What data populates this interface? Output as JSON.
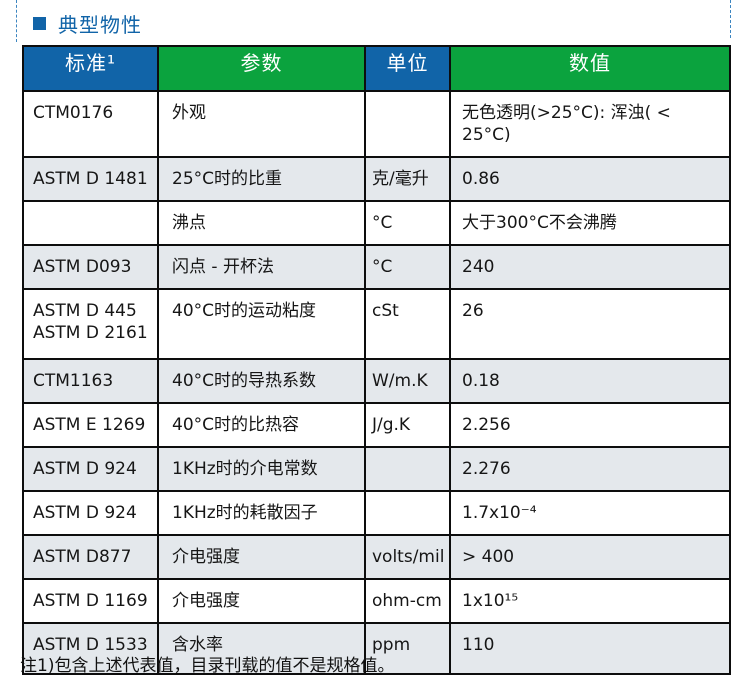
{
  "page": {
    "title": "典型物性",
    "footnote": "注1)包含上述代表值，目录刊载的值不是规格值。"
  },
  "colors": {
    "header_blue": "#1164a8",
    "header_green": "#0ba33e",
    "row_shaded": "#e4e8ec",
    "title_blue": "#1164a8",
    "border": "#0d0d0d"
  },
  "table": {
    "headers": [
      {
        "label": "标准¹"
      },
      {
        "label": "参数"
      },
      {
        "label": "单位"
      },
      {
        "label": "数值"
      }
    ],
    "rows": [
      {
        "standard": "CTM0176",
        "parameter": "外观",
        "unit": "",
        "value": "无色透明(>25°C): 浑浊( < 25°C)"
      },
      {
        "standard": "ASTM D 1481",
        "parameter": "25°C时的比重",
        "unit": "克/毫升",
        "value": "0.86"
      },
      {
        "standard": "",
        "parameter": "沸点",
        "unit": "°C",
        "value": "大于300°C不会沸腾"
      },
      {
        "standard": "ASTM D093",
        "parameter": "闪点 - 开杯法",
        "unit": "°C",
        "value": "240"
      },
      {
        "standard": "ASTM D 445\nASTM D 2161",
        "parameter": "40°C时的运动粘度",
        "unit": "cSt",
        "value": "26"
      },
      {
        "standard": "CTM1163",
        "parameter": "40°C时的导热系数",
        "unit": "W/m.K",
        "value": "0.18"
      },
      {
        "standard": "ASTM E 1269",
        "parameter": "40°C时的比热容",
        "unit": "J/g.K",
        "value": "2.256"
      },
      {
        "standard": "ASTM D 924",
        "parameter": "1KHz时的介电常数",
        "unit": "",
        "value": "2.276"
      },
      {
        "standard": "ASTM D 924",
        "parameter": "1KHz时的耗散因子",
        "unit": "",
        "value": "1.7x10⁻⁴"
      },
      {
        "standard": "ASTM D877",
        "parameter": "介电强度",
        "unit": "volts/mil",
        "value": "> 400"
      },
      {
        "standard": "ASTM D 1169",
        "parameter": "介电强度",
        "unit": "ohm-cm",
        "value": "1x10¹⁵"
      },
      {
        "standard": "ASTM D 1533",
        "parameter": "含水率",
        "unit": "ppm",
        "value": "110"
      }
    ]
  }
}
